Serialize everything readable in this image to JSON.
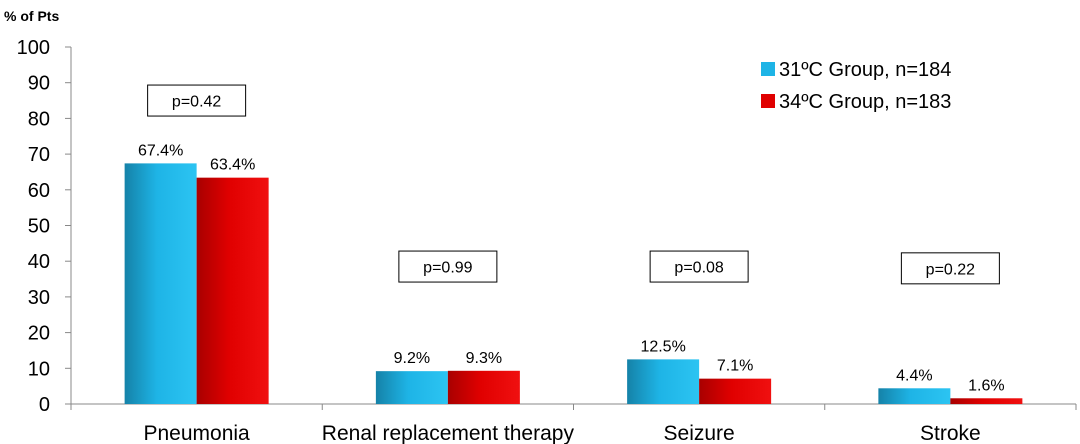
{
  "chart_data": {
    "type": "bar",
    "ylabel": "% of Pts",
    "ylim": [
      0,
      100
    ],
    "yticks": [
      0,
      10,
      20,
      30,
      40,
      50,
      60,
      70,
      80,
      90,
      100
    ],
    "categories": [
      "Pneumonia",
      "Renal replacement therapy",
      "Seizure",
      "Stroke"
    ],
    "series": [
      {
        "name": "31ºC Group, n=184",
        "color": "#1EB4E6",
        "values": [
          67.4,
          9.2,
          12.5,
          4.4
        ],
        "labels": [
          "67.4%",
          "9.2%",
          "12.5%",
          "4.4%"
        ]
      },
      {
        "name": "34ºC Group, n=183",
        "color": "#E00000",
        "values": [
          63.4,
          9.3,
          7.1,
          1.6
        ],
        "labels": [
          "63.4%",
          "9.3%",
          "7.1%",
          "1.6%"
        ]
      }
    ],
    "annotations": [
      "p=0.42",
      "p=0.99",
      "p=0.08",
      "p=0.22"
    ],
    "annotation_levels": [
      85,
      38.5,
      38.5,
      38
    ],
    "legend_position": "top-right",
    "grid": false
  }
}
